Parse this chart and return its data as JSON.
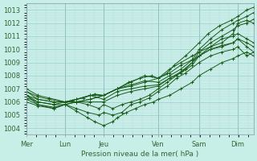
{
  "xlabel": "Pression niveau de la mer( hPa )",
  "bg_color": "#c8eee8",
  "grid_major_color": "#99cccc",
  "grid_minor_color": "#bbdddd",
  "vline_color": "#7799aa",
  "line_color": "#1a5c1a",
  "ylim": [
    1003.5,
    1013.5
  ],
  "xlim": [
    0,
    100
  ],
  "day_labels": [
    "Mer",
    "Lun",
    "Jeu",
    "Ven",
    "Sam",
    "Dim"
  ],
  "day_x": [
    0,
    17,
    34,
    58,
    76,
    93
  ],
  "series": [
    {
      "pts": [
        [
          0,
          1007.0
        ],
        [
          5,
          1006.5
        ],
        [
          10,
          1006.3
        ],
        [
          17,
          1006.0
        ],
        [
          20,
          1006.1
        ],
        [
          25,
          1006.3
        ],
        [
          30,
          1006.6
        ],
        [
          34,
          1006.5
        ],
        [
          40,
          1007.0
        ],
        [
          45,
          1007.5
        ],
        [
          50,
          1007.8
        ],
        [
          55,
          1008.0
        ],
        [
          58,
          1007.8
        ],
        [
          62,
          1008.2
        ],
        [
          65,
          1008.8
        ],
        [
          70,
          1009.5
        ],
        [
          76,
          1010.5
        ],
        [
          80,
          1011.2
        ],
        [
          85,
          1011.8
        ],
        [
          90,
          1012.2
        ],
        [
          93,
          1012.5
        ],
        [
          97,
          1013.0
        ],
        [
          100,
          1013.2
        ]
      ]
    },
    {
      "pts": [
        [
          0,
          1006.8
        ],
        [
          5,
          1006.4
        ],
        [
          10,
          1006.2
        ],
        [
          17,
          1006.0
        ],
        [
          22,
          1006.2
        ],
        [
          28,
          1006.5
        ],
        [
          34,
          1006.5
        ],
        [
          40,
          1007.0
        ],
        [
          46,
          1007.3
        ],
        [
          52,
          1007.6
        ],
        [
          58,
          1007.5
        ],
        [
          63,
          1008.0
        ],
        [
          68,
          1008.5
        ],
        [
          73,
          1009.2
        ],
        [
          76,
          1010.0
        ],
        [
          81,
          1010.8
        ],
        [
          86,
          1011.5
        ],
        [
          91,
          1012.0
        ],
        [
          93,
          1012.2
        ],
        [
          97,
          1012.5
        ],
        [
          100,
          1012.8
        ]
      ]
    },
    {
      "pts": [
        [
          0,
          1006.5
        ],
        [
          5,
          1006.2
        ],
        [
          12,
          1006.0
        ],
        [
          17,
          1006.0
        ],
        [
          22,
          1006.2
        ],
        [
          28,
          1006.5
        ],
        [
          34,
          1006.2
        ],
        [
          40,
          1006.8
        ],
        [
          46,
          1007.0
        ],
        [
          52,
          1007.2
        ],
        [
          58,
          1007.3
        ],
        [
          63,
          1007.8
        ],
        [
          68,
          1008.3
        ],
        [
          73,
          1009.0
        ],
        [
          76,
          1009.8
        ],
        [
          81,
          1010.5
        ],
        [
          86,
          1011.0
        ],
        [
          91,
          1011.5
        ],
        [
          93,
          1011.8
        ],
        [
          97,
          1012.0
        ],
        [
          100,
          1012.3
        ]
      ]
    },
    {
      "pts": [
        [
          0,
          1006.3
        ],
        [
          5,
          1006.0
        ],
        [
          12,
          1005.8
        ],
        [
          17,
          1005.8
        ],
        [
          22,
          1006.0
        ],
        [
          28,
          1006.0
        ],
        [
          34,
          1006.0
        ],
        [
          40,
          1006.5
        ],
        [
          46,
          1006.8
        ],
        [
          52,
          1007.0
        ],
        [
          58,
          1007.2
        ],
        [
          63,
          1007.8
        ],
        [
          68,
          1008.2
        ],
        [
          73,
          1008.8
        ],
        [
          76,
          1009.5
        ],
        [
          81,
          1010.2
        ],
        [
          86,
          1010.8
        ],
        [
          91,
          1011.0
        ],
        [
          93,
          1011.2
        ],
        [
          97,
          1010.8
        ],
        [
          100,
          1010.5
        ]
      ]
    },
    {
      "pts": [
        [
          0,
          1006.2
        ],
        [
          5,
          1005.8
        ],
        [
          12,
          1005.6
        ],
        [
          17,
          1005.8
        ],
        [
          22,
          1006.0
        ],
        [
          27,
          1005.8
        ],
        [
          32,
          1005.5
        ],
        [
          34,
          1005.8
        ],
        [
          38,
          1005.5
        ],
        [
          42,
          1005.8
        ],
        [
          46,
          1006.0
        ],
        [
          50,
          1006.2
        ],
        [
          54,
          1006.5
        ],
        [
          58,
          1007.0
        ],
        [
          62,
          1007.5
        ],
        [
          66,
          1008.0
        ],
        [
          70,
          1008.5
        ],
        [
          76,
          1009.5
        ],
        [
          81,
          1010.0
        ],
        [
          86,
          1010.3
        ],
        [
          91,
          1010.5
        ],
        [
          93,
          1010.8
        ],
        [
          97,
          1010.2
        ],
        [
          100,
          1009.8
        ]
      ]
    },
    {
      "pts": [
        [
          0,
          1006.0
        ],
        [
          5,
          1005.7
        ],
        [
          12,
          1005.5
        ],
        [
          17,
          1005.8
        ],
        [
          22,
          1005.5
        ],
        [
          27,
          1005.2
        ],
        [
          32,
          1005.0
        ],
        [
          34,
          1005.2
        ],
        [
          38,
          1005.0
        ],
        [
          42,
          1005.2
        ],
        [
          46,
          1005.8
        ],
        [
          50,
          1006.0
        ],
        [
          54,
          1006.3
        ],
        [
          58,
          1006.8
        ],
        [
          62,
          1007.2
        ],
        [
          66,
          1007.8
        ],
        [
          70,
          1008.2
        ],
        [
          76,
          1009.0
        ],
        [
          81,
          1009.5
        ],
        [
          86,
          1009.8
        ],
        [
          91,
          1010.0
        ],
        [
          93,
          1010.2
        ],
        [
          97,
          1009.5
        ],
        [
          100,
          1009.8
        ]
      ]
    },
    {
      "pts": [
        [
          0,
          1006.5
        ],
        [
          5,
          1005.8
        ],
        [
          12,
          1005.5
        ],
        [
          17,
          1005.8
        ],
        [
          22,
          1005.3
        ],
        [
          27,
          1004.8
        ],
        [
          30,
          1004.5
        ],
        [
          34,
          1004.2
        ],
        [
          38,
          1004.5
        ],
        [
          40,
          1004.8
        ],
        [
          44,
          1005.2
        ],
        [
          48,
          1005.5
        ],
        [
          52,
          1005.8
        ],
        [
          56,
          1006.0
        ],
        [
          58,
          1006.2
        ],
        [
          63,
          1006.5
        ],
        [
          68,
          1007.0
        ],
        [
          73,
          1007.5
        ],
        [
          76,
          1008.0
        ],
        [
          81,
          1008.5
        ],
        [
          86,
          1009.0
        ],
        [
          91,
          1009.3
        ],
        [
          93,
          1009.5
        ],
        [
          97,
          1009.8
        ],
        [
          100,
          1009.5
        ]
      ]
    },
    {
      "pts": [
        [
          0,
          1006.8
        ],
        [
          5,
          1006.2
        ],
        [
          12,
          1006.0
        ],
        [
          17,
          1006.0
        ],
        [
          22,
          1006.0
        ],
        [
          28,
          1006.2
        ],
        [
          34,
          1006.5
        ],
        [
          40,
          1007.0
        ],
        [
          46,
          1007.5
        ],
        [
          52,
          1008.0
        ],
        [
          58,
          1007.8
        ],
        [
          63,
          1008.5
        ],
        [
          68,
          1009.0
        ],
        [
          73,
          1009.5
        ],
        [
          76,
          1009.8
        ],
        [
          81,
          1010.2
        ],
        [
          86,
          1010.5
        ],
        [
          91,
          1011.2
        ],
        [
          93,
          1012.0
        ],
        [
          97,
          1012.2
        ],
        [
          100,
          1012.0
        ]
      ]
    },
    {
      "pts": [
        [
          0,
          1006.5
        ],
        [
          5,
          1006.0
        ],
        [
          12,
          1005.8
        ],
        [
          17,
          1006.0
        ],
        [
          22,
          1006.0
        ],
        [
          28,
          1006.2
        ],
        [
          34,
          1006.5
        ],
        [
          40,
          1007.0
        ],
        [
          46,
          1007.2
        ],
        [
          52,
          1007.5
        ],
        [
          58,
          1007.8
        ],
        [
          63,
          1008.2
        ],
        [
          68,
          1008.8
        ],
        [
          73,
          1009.2
        ],
        [
          76,
          1009.5
        ],
        [
          81,
          1010.0
        ],
        [
          86,
          1010.2
        ],
        [
          91,
          1010.5
        ],
        [
          93,
          1010.8
        ],
        [
          97,
          1010.5
        ],
        [
          100,
          1010.2
        ]
      ]
    }
  ]
}
